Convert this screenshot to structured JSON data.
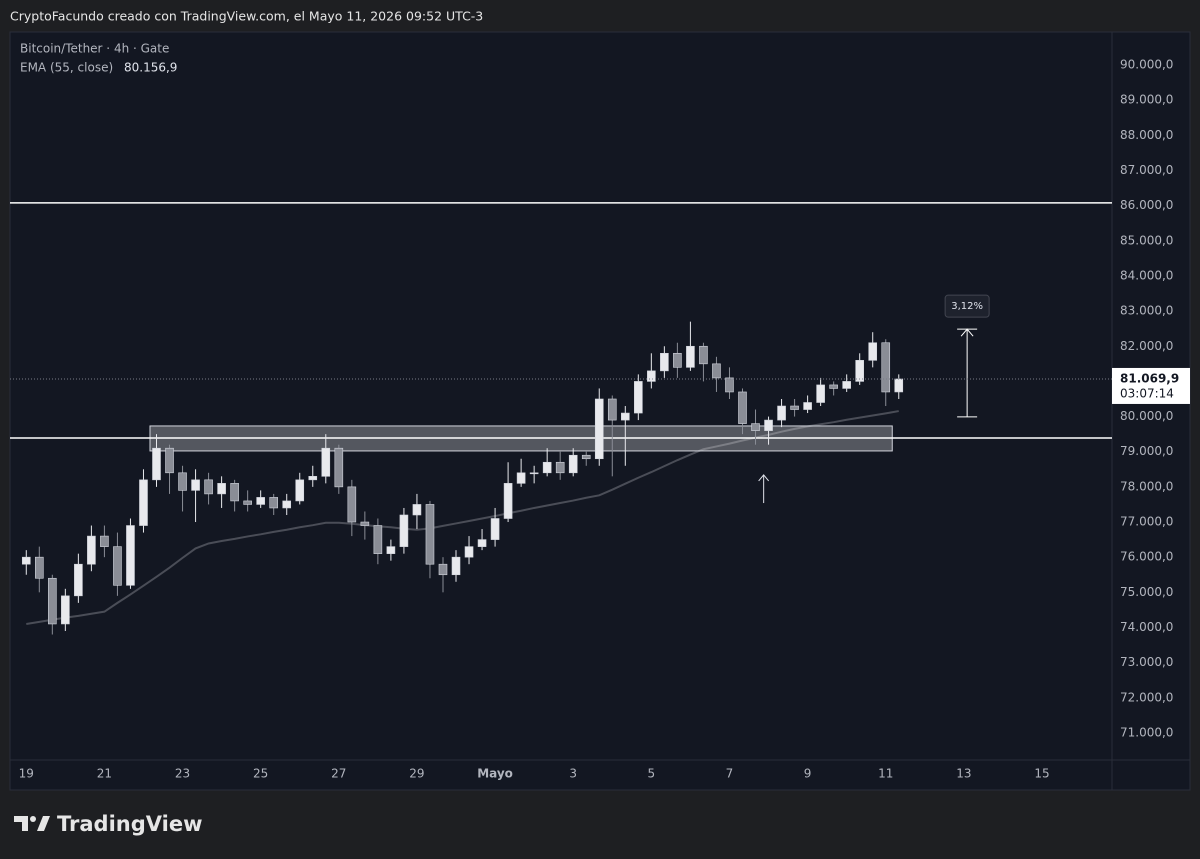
{
  "page": {
    "credit": "CryptoFacundo creado con TradingView.com, el Mayo 11, 2026 09:52 UTC-3",
    "brand": "TradingView"
  },
  "chart_data": {
    "type": "candlestick",
    "title": "Bitcoin/Tether · 4h · Gate",
    "x": [
      0,
      8,
      16,
      24,
      32,
      40,
      48,
      56,
      64,
      72,
      80,
      88,
      96,
      104,
      112,
      120,
      128,
      136,
      144,
      152,
      160,
      168,
      176,
      184,
      192,
      200,
      208,
      216,
      224,
      232,
      240,
      248,
      256,
      264,
      272,
      280,
      288,
      296,
      304,
      312,
      320,
      328,
      336,
      344,
      352,
      360,
      368,
      376,
      384,
      392,
      400,
      408,
      416,
      424,
      432,
      440,
      448,
      456,
      464,
      472,
      480,
      488,
      496,
      504,
      512,
      520,
      528,
      536
    ],
    "open": [
      75800,
      76000,
      75400,
      74100,
      74900,
      75800,
      76600,
      76300,
      75200,
      76900,
      78200,
      79100,
      78400,
      77900,
      78200,
      77800,
      78100,
      77600,
      77500,
      77700,
      77400,
      77600,
      78200,
      78300,
      79100,
      78000,
      77000,
      76900,
      76100,
      76300,
      77200,
      77500,
      75800,
      75500,
      76000,
      76300,
      76500,
      77100,
      78100,
      78400,
      78400,
      78700,
      78400,
      78900,
      78800,
      80500,
      79900,
      80100,
      81000,
      81300,
      81800,
      81400,
      82000,
      81500,
      81100,
      80700,
      79800,
      79600,
      79900,
      80300,
      80200,
      80400,
      80900,
      80800,
      81000,
      81600,
      82100,
      80700
    ],
    "high": [
      76200,
      76300,
      75500,
      75100,
      76100,
      76900,
      76900,
      76700,
      77100,
      78500,
      79500,
      79200,
      78600,
      78500,
      78400,
      78300,
      78200,
      77900,
      77900,
      77800,
      77800,
      78400,
      78600,
      79500,
      79200,
      78200,
      77300,
      77100,
      76500,
      77400,
      77800,
      77600,
      76000,
      76200,
      76600,
      76800,
      77400,
      78700,
      78800,
      78600,
      79100,
      79000,
      79100,
      79000,
      80800,
      80600,
      80300,
      81200,
      81800,
      82000,
      82100,
      82700,
      82100,
      81700,
      81400,
      80800,
      80200,
      80000,
      80500,
      80500,
      80600,
      81100,
      81000,
      81200,
      81800,
      82400,
      82200,
      81200
    ],
    "low": [
      75500,
      75000,
      73800,
      73900,
      74700,
      75600,
      76000,
      74900,
      75100,
      76700,
      78000,
      77800,
      77300,
      77000,
      77500,
      77400,
      77300,
      77300,
      77400,
      77200,
      77200,
      77500,
      78000,
      78100,
      77800,
      76600,
      76500,
      75800,
      75900,
      76100,
      76800,
      75400,
      75000,
      75300,
      75800,
      76200,
      76300,
      77000,
      78000,
      78100,
      78300,
      78200,
      78300,
      78600,
      78600,
      78300,
      78600,
      79900,
      80800,
      81100,
      81100,
      81300,
      81000,
      80700,
      80500,
      79500,
      79200,
      79200,
      79700,
      80000,
      80100,
      80300,
      80600,
      80700,
      80900,
      81400,
      80300,
      80500
    ],
    "close": [
      76000,
      75400,
      74100,
      74900,
      75800,
      76600,
      76300,
      75200,
      76900,
      78200,
      79100,
      78400,
      77900,
      78200,
      77800,
      78100,
      77600,
      77500,
      77700,
      77400,
      77600,
      78200,
      78300,
      79100,
      78000,
      77000,
      76900,
      76100,
      76300,
      77200,
      77500,
      75800,
      75500,
      76000,
      76300,
      76500,
      77100,
      78100,
      78400,
      78400,
      78700,
      78400,
      78900,
      78800,
      80500,
      79900,
      80100,
      81000,
      81300,
      81800,
      81400,
      82000,
      81500,
      81100,
      80700,
      79800,
      79600,
      79900,
      80300,
      80200,
      80400,
      80900,
      80800,
      81000,
      81600,
      82100,
      80700,
      81069.9
    ],
    "up_color": "#e8e9ed",
    "down_color": "#8a8d96",
    "last_price": {
      "value": 81069.9,
      "label": "81.069,9"
    },
    "countdown": "03:07:14",
    "ema": {
      "name": "EMA (55, close)",
      "color": "#4a4d57",
      "last_label": "80.156,9",
      "values": [
        74100,
        74160,
        74220,
        74280,
        74330,
        74390,
        74450,
        74700,
        74940,
        75190,
        75440,
        75700,
        75980,
        76250,
        76390,
        76460,
        76520,
        76590,
        76650,
        76720,
        76780,
        76850,
        76910,
        76980,
        76980,
        76950,
        76910,
        76880,
        76850,
        76810,
        76780,
        76820,
        76890,
        76960,
        77030,
        77100,
        77170,
        77250,
        77320,
        77400,
        77470,
        77540,
        77610,
        77690,
        77760,
        77920,
        78090,
        78260,
        78420,
        78590,
        78760,
        78920,
        79070,
        79150,
        79230,
        79320,
        79400,
        79480,
        79570,
        79650,
        79720,
        79780,
        79840,
        79910,
        79970,
        80030,
        80090,
        80156.9
      ]
    },
    "hlines": [
      86080,
      79390
    ],
    "zone": {
      "x": [
        76,
        532
      ],
      "y": [
        79022,
        79733
      ]
    },
    "arrow": {
      "x": 453,
      "from": 77540,
      "to": 78340
    },
    "measure": {
      "x": 578,
      "from": 79990,
      "to": 82486,
      "label": "3,12%"
    },
    "xlim": [
      -10,
      667
    ],
    "xticks": [
      {
        "value": 0,
        "label": "19"
      },
      {
        "value": 48,
        "label": "21"
      },
      {
        "value": 96,
        "label": "23"
      },
      {
        "value": 144,
        "label": "25"
      },
      {
        "value": 192,
        "label": "27"
      },
      {
        "value": 240,
        "label": "29"
      },
      {
        "value": 288,
        "label": "Mayo"
      },
      {
        "value": 336,
        "label": "3"
      },
      {
        "value": 384,
        "label": "5"
      },
      {
        "value": 432,
        "label": "7"
      },
      {
        "value": 480,
        "label": "9"
      },
      {
        "value": 528,
        "label": "11"
      },
      {
        "value": 576,
        "label": "13"
      },
      {
        "value": 624,
        "label": "15"
      }
    ],
    "ylim": [
      70230,
      90940
    ],
    "yticks": [
      {
        "value": 71000,
        "label": "71.000,0"
      },
      {
        "value": 72000,
        "label": "72.000,0"
      },
      {
        "value": 73000,
        "label": "73.000,0"
      },
      {
        "value": 74000,
        "label": "74.000,0"
      },
      {
        "value": 75000,
        "label": "75.000,0"
      },
      {
        "value": 76000,
        "label": "76.000,0"
      },
      {
        "value": 77000,
        "label": "77.000,0"
      },
      {
        "value": 78000,
        "label": "78.000,0"
      },
      {
        "value": 79000,
        "label": "79.000,0"
      },
      {
        "value": 80000,
        "label": "80.000,0"
      },
      {
        "value": 81000,
        "label": "81.000,0"
      },
      {
        "value": 82000,
        "label": "82.000,0"
      },
      {
        "value": 83000,
        "label": "83.000,0"
      },
      {
        "value": 84000,
        "label": "84.000,0"
      },
      {
        "value": 85000,
        "label": "85.000,0"
      },
      {
        "value": 86000,
        "label": "86.000,0"
      },
      {
        "value": 87000,
        "label": "87.000,0"
      },
      {
        "value": 88000,
        "label": "88.000,0"
      },
      {
        "value": 89000,
        "label": "89.000,0"
      },
      {
        "value": 90000,
        "label": "90.000,0"
      }
    ]
  }
}
